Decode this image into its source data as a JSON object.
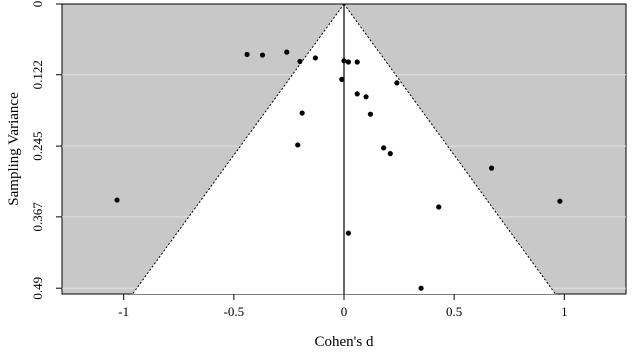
{
  "chart_data": {
    "type": "scatter",
    "title": "",
    "xlabel": "Cohen's d",
    "ylabel": "Sampling Variance",
    "xlim": [
      -1.28,
      1.28
    ],
    "ylim": [
      0,
      0.5
    ],
    "y_reversed": true,
    "x_ticks": [
      -1,
      -0.5,
      0,
      0.5,
      1
    ],
    "x_tick_labels": [
      "-1",
      "-0.5",
      "0",
      "0.5",
      "1"
    ],
    "y_ticks": [
      0,
      0.122,
      0.245,
      0.367,
      0.49
    ],
    "y_tick_labels": [
      "0",
      "0.122",
      "0.245",
      "0.367",
      "0.49"
    ],
    "grid": "horizontal",
    "funnel_center": 0,
    "funnel_base_x": [
      -0.96,
      0.96
    ],
    "colors": {
      "background": "#c8c8c8",
      "funnel": "#ffffff",
      "grid": "#e0e0e0",
      "points": "#000000"
    },
    "points": [
      {
        "x": -1.03,
        "y": 0.338
      },
      {
        "x": -0.44,
        "y": 0.087
      },
      {
        "x": -0.37,
        "y": 0.088
      },
      {
        "x": -0.26,
        "y": 0.083
      },
      {
        "x": -0.2,
        "y": 0.099
      },
      {
        "x": -0.13,
        "y": 0.093
      },
      {
        "x": -0.19,
        "y": 0.188
      },
      {
        "x": -0.21,
        "y": 0.243
      },
      {
        "x": 0.0,
        "y": 0.098
      },
      {
        "x": 0.02,
        "y": 0.1
      },
      {
        "x": 0.06,
        "y": 0.1
      },
      {
        "x": -0.01,
        "y": 0.13
      },
      {
        "x": 0.06,
        "y": 0.155
      },
      {
        "x": 0.1,
        "y": 0.16
      },
      {
        "x": 0.12,
        "y": 0.19
      },
      {
        "x": 0.18,
        "y": 0.248
      },
      {
        "x": 0.21,
        "y": 0.258
      },
      {
        "x": 0.24,
        "y": 0.136
      },
      {
        "x": 0.02,
        "y": 0.395
      },
      {
        "x": 0.43,
        "y": 0.35
      },
      {
        "x": 0.35,
        "y": 0.49
      },
      {
        "x": 0.67,
        "y": 0.283
      },
      {
        "x": 0.98,
        "y": 0.34
      }
    ]
  }
}
